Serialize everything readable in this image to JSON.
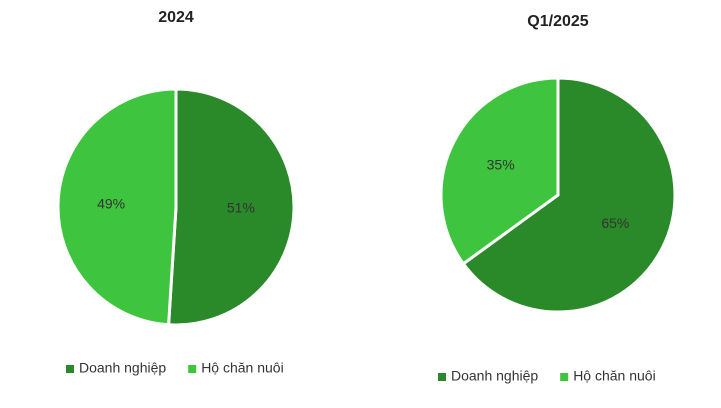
{
  "chart_data": [
    {
      "type": "pie",
      "title": "2024",
      "categories": [
        "Doanh nghiệp",
        "Hộ chăn nuôi"
      ],
      "values": [
        51,
        49
      ],
      "value_labels": [
        "51%",
        "49%"
      ],
      "colors": [
        "#2a8a2a",
        "#3ec43e"
      ]
    },
    {
      "type": "pie",
      "title": "Q1/2025",
      "categories": [
        "Doanh nghiệp",
        "Hộ chăn nuôi"
      ],
      "values": [
        65,
        35
      ],
      "value_labels": [
        "65%",
        "35%"
      ],
      "colors": [
        "#2a8a2a",
        "#3ec43e"
      ]
    }
  ]
}
